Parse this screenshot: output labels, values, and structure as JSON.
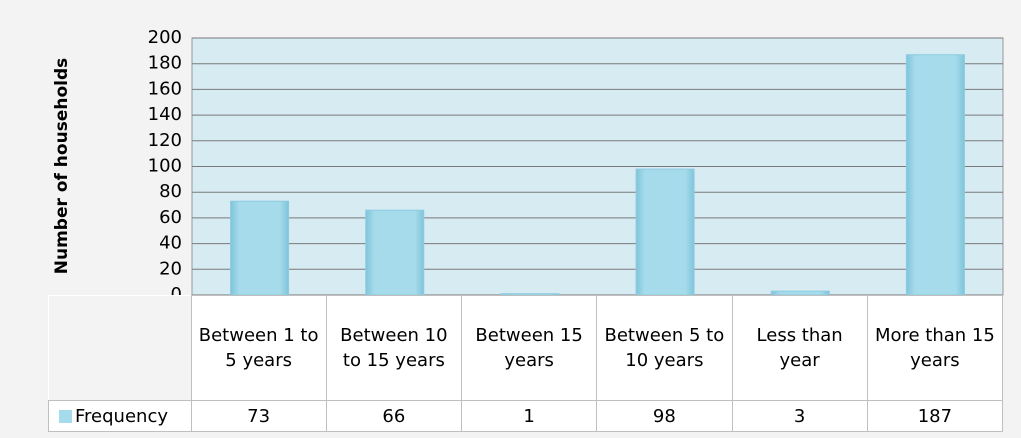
{
  "chart_data": {
    "type": "bar",
    "y_label": "Number of households",
    "categories": [
      "Between 1 to 5 years",
      "Between 10 to 15 years",
      "Between 15 years",
      "Between 5 to 10 years",
      "Less than year",
      "More than 15 years"
    ],
    "series": [
      {
        "name": "Frequency",
        "color": "#a6dbeb",
        "values": [
          73,
          66,
          1,
          98,
          3,
          187
        ]
      }
    ],
    "ylim": [
      0,
      200
    ],
    "yticks": [
      0,
      20,
      40,
      60,
      80,
      100,
      120,
      140,
      160,
      180,
      200
    ],
    "grid": true
  }
}
